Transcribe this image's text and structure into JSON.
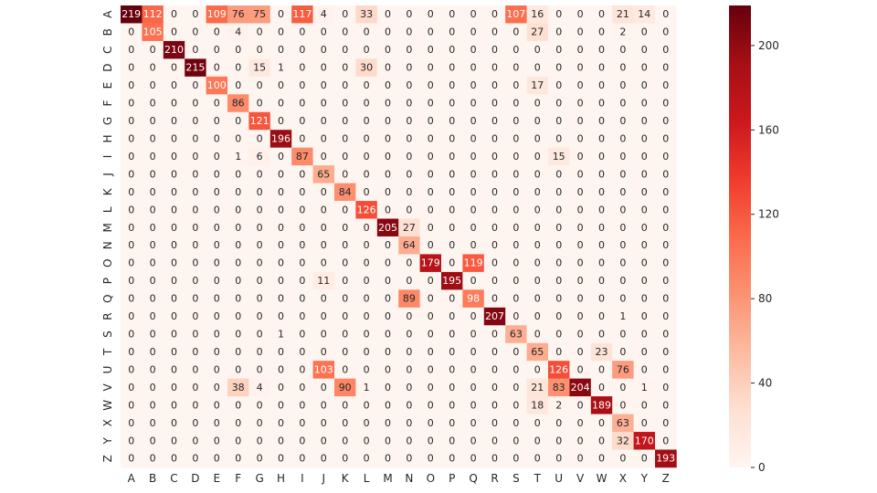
{
  "chart_data": {
    "type": "heatmap",
    "title": "",
    "xlabel": "",
    "ylabel": "",
    "x_categories": [
      "A",
      "B",
      "C",
      "D",
      "E",
      "F",
      "G",
      "H",
      "I",
      "J",
      "K",
      "L",
      "M",
      "N",
      "O",
      "P",
      "Q",
      "R",
      "S",
      "T",
      "U",
      "V",
      "W",
      "X",
      "Y",
      "Z"
    ],
    "y_categories": [
      "A",
      "B",
      "C",
      "D",
      "E",
      "F",
      "G",
      "H",
      "I",
      "J",
      "K",
      "L",
      "M",
      "N",
      "O",
      "P",
      "Q",
      "R",
      "S",
      "T",
      "U",
      "V",
      "W",
      "X",
      "Y",
      "Z"
    ],
    "values": [
      [
        219,
        112,
        0,
        0,
        109,
        76,
        75,
        0,
        117,
        4,
        0,
        33,
        0,
        0,
        0,
        0,
        0,
        0,
        107,
        16,
        0,
        0,
        0,
        21,
        14,
        0
      ],
      [
        0,
        105,
        0,
        0,
        0,
        4,
        0,
        0,
        0,
        0,
        0,
        0,
        0,
        0,
        0,
        0,
        0,
        0,
        0,
        27,
        0,
        0,
        0,
        2,
        0,
        0
      ],
      [
        0,
        0,
        210,
        0,
        0,
        0,
        0,
        0,
        0,
        0,
        0,
        0,
        0,
        0,
        0,
        0,
        0,
        0,
        0,
        0,
        0,
        0,
        0,
        0,
        0,
        0
      ],
      [
        0,
        0,
        0,
        215,
        0,
        0,
        15,
        1,
        0,
        0,
        0,
        30,
        0,
        0,
        0,
        0,
        0,
        0,
        0,
        0,
        0,
        0,
        0,
        0,
        0,
        0
      ],
      [
        0,
        0,
        0,
        0,
        100,
        0,
        0,
        0,
        0,
        0,
        0,
        0,
        0,
        0,
        0,
        0,
        0,
        0,
        0,
        17,
        0,
        0,
        0,
        0,
        0,
        0
      ],
      [
        0,
        0,
        0,
        0,
        0,
        86,
        0,
        0,
        0,
        0,
        0,
        0,
        0,
        0,
        0,
        0,
        0,
        0,
        0,
        0,
        0,
        0,
        0,
        0,
        0,
        0
      ],
      [
        0,
        0,
        0,
        0,
        0,
        0,
        121,
        0,
        0,
        0,
        0,
        0,
        0,
        0,
        0,
        0,
        0,
        0,
        0,
        0,
        0,
        0,
        0,
        0,
        0,
        0
      ],
      [
        0,
        0,
        0,
        0,
        0,
        0,
        0,
        196,
        0,
        0,
        0,
        0,
        0,
        0,
        0,
        0,
        0,
        0,
        0,
        0,
        0,
        0,
        0,
        0,
        0,
        0
      ],
      [
        0,
        0,
        0,
        0,
        0,
        1,
        6,
        0,
        87,
        0,
        0,
        0,
        0,
        0,
        0,
        0,
        0,
        0,
        0,
        0,
        15,
        0,
        0,
        0,
        0,
        0
      ],
      [
        0,
        0,
        0,
        0,
        0,
        0,
        0,
        0,
        0,
        65,
        0,
        0,
        0,
        0,
        0,
        0,
        0,
        0,
        0,
        0,
        0,
        0,
        0,
        0,
        0,
        0
      ],
      [
        0,
        0,
        0,
        0,
        0,
        0,
        0,
        0,
        0,
        0,
        84,
        0,
        0,
        0,
        0,
        0,
        0,
        0,
        0,
        0,
        0,
        0,
        0,
        0,
        0,
        0
      ],
      [
        0,
        0,
        0,
        0,
        0,
        0,
        0,
        0,
        0,
        0,
        0,
        126,
        0,
        0,
        0,
        0,
        0,
        0,
        0,
        0,
        0,
        0,
        0,
        0,
        0,
        0
      ],
      [
        0,
        0,
        0,
        0,
        0,
        0,
        0,
        0,
        0,
        0,
        0,
        0,
        205,
        27,
        0,
        0,
        0,
        0,
        0,
        0,
        0,
        0,
        0,
        0,
        0,
        0
      ],
      [
        0,
        0,
        0,
        0,
        0,
        0,
        0,
        0,
        0,
        0,
        0,
        0,
        0,
        64,
        0,
        0,
        0,
        0,
        0,
        0,
        0,
        0,
        0,
        0,
        0,
        0
      ],
      [
        0,
        0,
        0,
        0,
        0,
        0,
        0,
        0,
        0,
        0,
        0,
        0,
        0,
        0,
        179,
        0,
        119,
        0,
        0,
        0,
        0,
        0,
        0,
        0,
        0,
        0
      ],
      [
        0,
        0,
        0,
        0,
        0,
        0,
        0,
        0,
        0,
        11,
        0,
        0,
        0,
        0,
        0,
        195,
        0,
        0,
        0,
        0,
        0,
        0,
        0,
        0,
        0,
        0
      ],
      [
        0,
        0,
        0,
        0,
        0,
        0,
        0,
        0,
        0,
        0,
        0,
        0,
        0,
        89,
        0,
        0,
        98,
        0,
        0,
        0,
        0,
        0,
        0,
        0,
        0,
        0
      ],
      [
        0,
        0,
        0,
        0,
        0,
        0,
        0,
        0,
        0,
        0,
        0,
        0,
        0,
        0,
        0,
        0,
        0,
        207,
        0,
        0,
        0,
        0,
        0,
        1,
        0,
        0
      ],
      [
        0,
        0,
        0,
        0,
        0,
        0,
        0,
        1,
        0,
        0,
        0,
        0,
        0,
        0,
        0,
        0,
        0,
        0,
        63,
        0,
        0,
        0,
        0,
        0,
        0,
        0
      ],
      [
        0,
        0,
        0,
        0,
        0,
        0,
        0,
        0,
        0,
        0,
        0,
        0,
        0,
        0,
        0,
        0,
        0,
        0,
        0,
        65,
        0,
        0,
        23,
        0,
        0,
        0
      ],
      [
        0,
        0,
        0,
        0,
        0,
        0,
        0,
        0,
        0,
        103,
        0,
        0,
        0,
        0,
        0,
        0,
        0,
        0,
        0,
        0,
        126,
        0,
        0,
        76,
        0,
        0
      ],
      [
        0,
        0,
        0,
        0,
        0,
        38,
        4,
        0,
        0,
        0,
        90,
        1,
        0,
        0,
        0,
        0,
        0,
        0,
        0,
        21,
        83,
        204,
        0,
        0,
        1,
        0
      ],
      [
        0,
        0,
        0,
        0,
        0,
        0,
        0,
        0,
        0,
        0,
        0,
        0,
        0,
        0,
        0,
        0,
        0,
        0,
        0,
        18,
        2,
        0,
        189,
        0,
        0,
        0
      ],
      [
        0,
        0,
        0,
        0,
        0,
        0,
        0,
        0,
        0,
        0,
        0,
        0,
        0,
        0,
        0,
        0,
        0,
        0,
        0,
        0,
        0,
        0,
        0,
        63,
        0,
        0
      ],
      [
        0,
        0,
        0,
        0,
        0,
        0,
        0,
        0,
        0,
        0,
        0,
        0,
        0,
        0,
        0,
        0,
        0,
        0,
        0,
        0,
        0,
        0,
        0,
        32,
        170,
        0
      ],
      [
        0,
        0,
        0,
        0,
        0,
        0,
        0,
        0,
        0,
        0,
        0,
        0,
        0,
        0,
        0,
        0,
        0,
        0,
        0,
        0,
        0,
        0,
        0,
        0,
        0,
        193
      ]
    ],
    "vmin": 0,
    "vmax": 219,
    "colormap": "Reds",
    "colorbar": {
      "ticks": [
        0,
        40,
        80,
        120,
        160,
        200
      ],
      "labels": [
        "0",
        "40",
        "80",
        "120",
        "160",
        "200"
      ]
    },
    "annotate": true,
    "grid": false,
    "legend": "colorbar-right"
  }
}
